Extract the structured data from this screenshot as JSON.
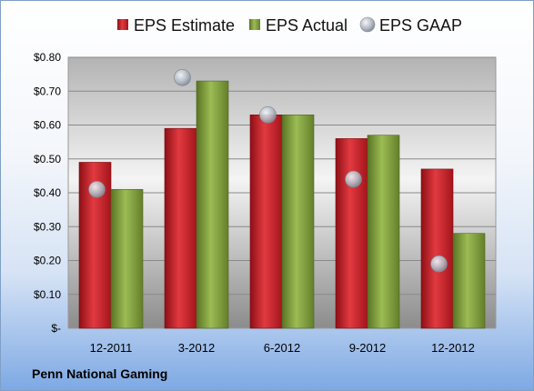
{
  "company": "Penn National Gaming",
  "colors": {
    "estimate": "#c0202a",
    "actual": "#7d9a3a",
    "gaap": "#a8b0bc"
  },
  "chart_data": {
    "type": "bar",
    "title": "",
    "xlabel": "",
    "ylabel": "",
    "categories": [
      "12-2011",
      "3-2012",
      "6-2012",
      "9-2012",
      "12-2012"
    ],
    "series": [
      {
        "name": "EPS Estimate",
        "kind": "bar",
        "values": [
          0.49,
          0.59,
          0.63,
          0.56,
          0.47
        ]
      },
      {
        "name": "EPS Actual",
        "kind": "bar",
        "values": [
          0.41,
          0.73,
          0.63,
          0.57,
          0.28
        ]
      },
      {
        "name": "EPS GAAP",
        "kind": "marker",
        "values": [
          0.41,
          0.74,
          0.63,
          0.44,
          0.19
        ]
      }
    ],
    "ylim": [
      0,
      0.8
    ],
    "yticks": [
      0,
      0.1,
      0.2,
      0.3,
      0.4,
      0.5,
      0.6,
      0.7,
      0.8
    ],
    "ytick_labels": [
      "$-",
      "$0.10",
      "$0.20",
      "$0.30",
      "$0.40",
      "$0.50",
      "$0.60",
      "$0.70",
      "$0.80"
    ],
    "grid": true,
    "legend_position": "top"
  }
}
